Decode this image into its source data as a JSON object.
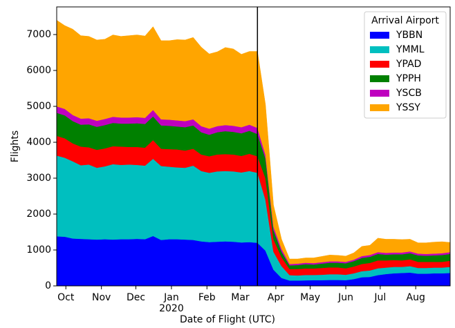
{
  "chart_data": {
    "type": "stackedarea",
    "xlabel": "Date of Flight (UTC)",
    "ylabel": "Flights",
    "x": [
      0,
      1,
      2,
      3,
      4,
      5,
      6,
      7,
      8,
      9,
      10,
      11,
      12,
      13,
      14,
      15,
      16,
      17,
      18,
      19,
      20,
      21,
      22,
      23,
      24,
      25,
      26,
      27,
      28,
      29,
      30,
      31,
      32,
      33,
      34,
      35,
      36,
      37,
      38,
      39,
      40,
      41,
      42,
      43,
      44,
      45,
      46,
      47,
      48,
      49
    ],
    "xlim": [
      0,
      49
    ],
    "ylim": [
      0,
      7770
    ],
    "xticks": [
      {
        "value": 1.14,
        "label": "Oct"
      },
      {
        "value": 5.57,
        "label": "Nov"
      },
      {
        "value": 9.86,
        "label": "Dec"
      },
      {
        "value": 14.29,
        "label": "Jan",
        "sublabel": "2020"
      },
      {
        "value": 18.71,
        "label": "Feb"
      },
      {
        "value": 22.86,
        "label": "Mar"
      },
      {
        "value": 27.29,
        "label": "Apr"
      },
      {
        "value": 31.57,
        "label": "May"
      },
      {
        "value": 36,
        "label": "Jun"
      },
      {
        "value": 40.29,
        "label": "Jul"
      },
      {
        "value": 44.71,
        "label": "Aug"
      }
    ],
    "yticks": [
      0,
      1000,
      2000,
      3000,
      4000,
      5000,
      6000,
      7000
    ],
    "vline_x": 25,
    "legend_title": "Arrival Airport",
    "legend_loc": "upper right",
    "series": [
      {
        "name": "YBBN",
        "color": "#0000ff",
        "values": [
          1380,
          1370,
          1320,
          1310,
          1300,
          1290,
          1300,
          1290,
          1300,
          1300,
          1310,
          1300,
          1390,
          1280,
          1300,
          1300,
          1290,
          1280,
          1240,
          1220,
          1230,
          1240,
          1230,
          1210,
          1220,
          1200,
          980,
          450,
          220,
          150,
          150,
          155,
          160,
          160,
          165,
          165,
          160,
          190,
          240,
          250,
          300,
          330,
          350,
          360,
          370,
          340,
          340,
          350,
          350,
          360
        ]
      },
      {
        "name": "YMML",
        "color": "#00bfbf",
        "values": [
          2250,
          2200,
          2150,
          2050,
          2080,
          2000,
          2030,
          2100,
          2070,
          2080,
          2060,
          2050,
          2150,
          2060,
          2020,
          2000,
          2000,
          2070,
          1960,
          1930,
          1960,
          1960,
          1960,
          1950,
          1980,
          1950,
          1420,
          500,
          330,
          150,
          140,
          150,
          145,
          150,
          160,
          160,
          150,
          160,
          170,
          180,
          190,
          180,
          180,
          170,
          180,
          160,
          160,
          160,
          160,
          170
        ]
      },
      {
        "name": "YPAD",
        "color": "#ff0000",
        "values": [
          550,
          540,
          500,
          520,
          480,
          500,
          500,
          500,
          510,
          490,
          500,
          500,
          520,
          480,
          490,
          500,
          480,
          470,
          460,
          460,
          470,
          470,
          470,
          460,
          480,
          460,
          600,
          350,
          250,
          170,
          180,
          180,
          180,
          190,
          190,
          190,
          180,
          190,
          200,
          210,
          220,
          200,
          190,
          180,
          190,
          170,
          170,
          160,
          160,
          170
        ]
      },
      {
        "name": "YPPH",
        "color": "#008000",
        "values": [
          640,
          640,
          620,
          610,
          640,
          640,
          650,
          650,
          640,
          650,
          660,
          660,
          660,
          650,
          650,
          640,
          650,
          650,
          620,
          600,
          620,
          640,
          630,
          630,
          640,
          620,
          550,
          250,
          150,
          100,
          110,
          120,
          110,
          120,
          130,
          130,
          140,
          150,
          170,
          170,
          180,
          160,
          160,
          170,
          170,
          180,
          170,
          180,
          190,
          190
        ]
      },
      {
        "name": "YSCB",
        "color": "#bf00bf",
        "values": [
          180,
          180,
          170,
          170,
          170,
          170,
          170,
          170,
          170,
          170,
          170,
          170,
          180,
          170,
          170,
          170,
          170,
          170,
          170,
          170,
          170,
          170,
          170,
          170,
          170,
          170,
          100,
          100,
          80,
          40,
          40,
          40,
          40,
          40,
          40,
          40,
          40,
          40,
          50,
          50,
          50,
          50,
          50,
          50,
          50,
          50,
          50,
          50,
          50,
          50
        ]
      },
      {
        "name": "YSSY",
        "color": "#ffa500",
        "values": [
          2400,
          2320,
          2390,
          2310,
          2280,
          2250,
          2220,
          2280,
          2260,
          2280,
          2290,
          2280,
          2320,
          2190,
          2200,
          2250,
          2260,
          2280,
          2200,
          2080,
          2070,
          2160,
          2140,
          2030,
          2040,
          2130,
          1400,
          600,
          270,
          140,
          130,
          135,
          145,
          160,
          175,
          165,
          160,
          190,
          270,
          270,
          390,
          380,
          370,
          360,
          340,
          300,
          310,
          320,
          320,
          270
        ]
      }
    ]
  }
}
